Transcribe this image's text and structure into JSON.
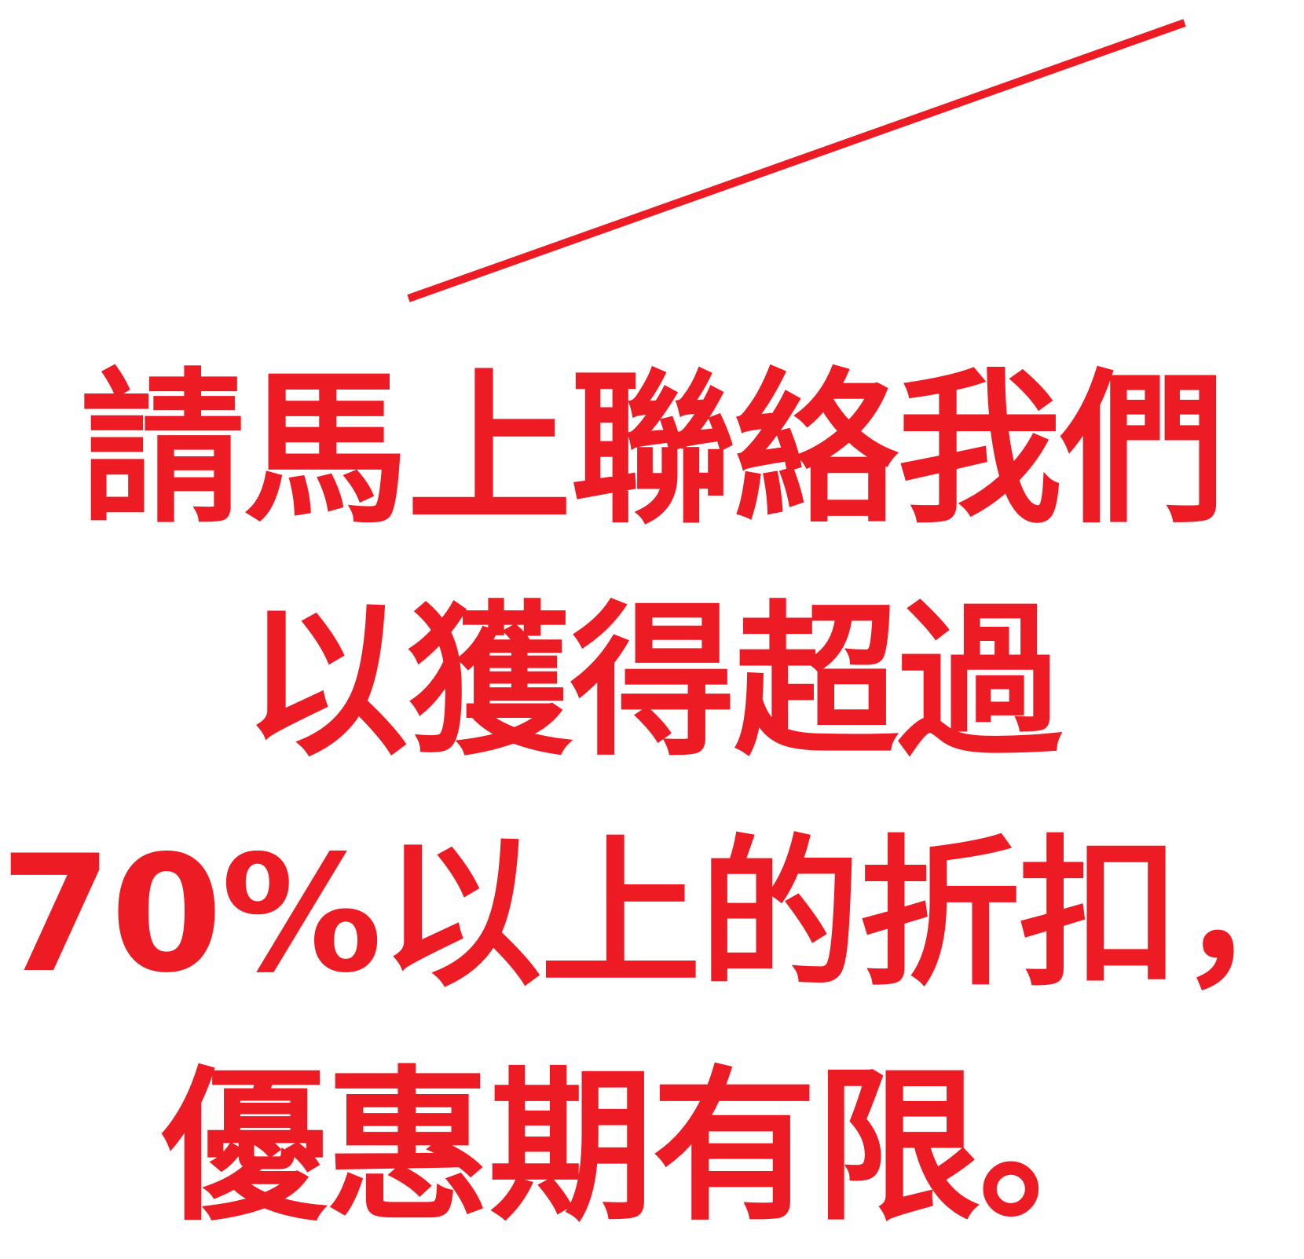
{
  "colors": {
    "accent": "#ed1c24",
    "background": "#ffffff"
  },
  "text": {
    "line1": "請馬上聯絡我們",
    "line2": "以獲得超過",
    "line3": "70%以上的折扣，",
    "line4": "優惠期有限。"
  }
}
